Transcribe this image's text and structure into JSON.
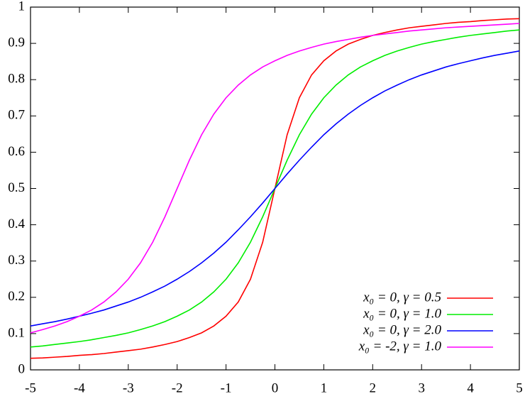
{
  "chart_data": {
    "type": "line",
    "x": [
      -5,
      -4.75,
      -4.5,
      -4.25,
      -4,
      -3.75,
      -3.5,
      -3.25,
      -3,
      -2.75,
      -2.5,
      -2.25,
      -2,
      -1.75,
      -1.5,
      -1.25,
      -1,
      -0.75,
      -0.5,
      -0.25,
      0,
      0.25,
      0.5,
      0.75,
      1,
      1.25,
      1.5,
      1.75,
      2,
      2.25,
      2.5,
      2.75,
      3,
      3.25,
      3.5,
      3.75,
      4,
      4.25,
      4.5,
      4.75,
      5
    ],
    "series": [
      {
        "name": "x₀ =  0, γ = 0.5",
        "color": "#ff0000",
        "values": [
          0.032,
          0.033,
          0.035,
          0.037,
          0.04,
          0.042,
          0.045,
          0.049,
          0.053,
          0.057,
          0.063,
          0.07,
          0.078,
          0.089,
          0.102,
          0.121,
          0.148,
          0.187,
          0.25,
          0.352,
          0.5,
          0.648,
          0.75,
          0.813,
          0.852,
          0.879,
          0.898,
          0.911,
          0.922,
          0.93,
          0.937,
          0.943,
          0.947,
          0.951,
          0.955,
          0.958,
          0.96,
          0.963,
          0.965,
          0.967,
          0.968
        ]
      },
      {
        "name": "x₀ =  0, γ = 1.0",
        "color": "#00ee00",
        "values": [
          0.063,
          0.066,
          0.07,
          0.074,
          0.078,
          0.083,
          0.089,
          0.095,
          0.102,
          0.111,
          0.121,
          0.133,
          0.148,
          0.165,
          0.187,
          0.215,
          0.25,
          0.295,
          0.352,
          0.422,
          0.5,
          0.578,
          0.648,
          0.705,
          0.75,
          0.785,
          0.813,
          0.835,
          0.852,
          0.867,
          0.879,
          0.889,
          0.898,
          0.905,
          0.911,
          0.917,
          0.922,
          0.926,
          0.93,
          0.934,
          0.937
        ]
      },
      {
        "name": "x₀ =  0, γ = 2.0",
        "color": "#0000ff",
        "values": [
          0.121,
          0.127,
          0.133,
          0.14,
          0.148,
          0.156,
          0.165,
          0.176,
          0.187,
          0.2,
          0.215,
          0.231,
          0.25,
          0.271,
          0.295,
          0.322,
          0.352,
          0.386,
          0.422,
          0.46,
          0.5,
          0.54,
          0.578,
          0.614,
          0.648,
          0.678,
          0.705,
          0.729,
          0.75,
          0.769,
          0.785,
          0.8,
          0.813,
          0.824,
          0.835,
          0.844,
          0.852,
          0.86,
          0.867,
          0.873,
          0.879
        ]
      },
      {
        "name": "x₀ = -2, γ = 1.0",
        "color": "#ff00ff",
        "values": [
          0.102,
          0.111,
          0.121,
          0.133,
          0.148,
          0.165,
          0.187,
          0.215,
          0.25,
          0.295,
          0.352,
          0.422,
          0.5,
          0.578,
          0.648,
          0.705,
          0.75,
          0.785,
          0.813,
          0.835,
          0.852,
          0.867,
          0.879,
          0.889,
          0.898,
          0.905,
          0.911,
          0.917,
          0.922,
          0.926,
          0.93,
          0.934,
          0.937,
          0.94,
          0.943,
          0.945,
          0.947,
          0.949,
          0.951,
          0.953,
          0.955
        ]
      }
    ],
    "xlim": [
      -5,
      5
    ],
    "xticks": [
      -5,
      -4,
      -3,
      -2,
      -1,
      0,
      1,
      2,
      3,
      4,
      5
    ],
    "ylim": [
      0,
      1
    ],
    "yticks": [
      0,
      0.1,
      0.2,
      0.3,
      0.4,
      0.5,
      0.6,
      0.7,
      0.8,
      0.9,
      1
    ],
    "legend": "lower right"
  }
}
